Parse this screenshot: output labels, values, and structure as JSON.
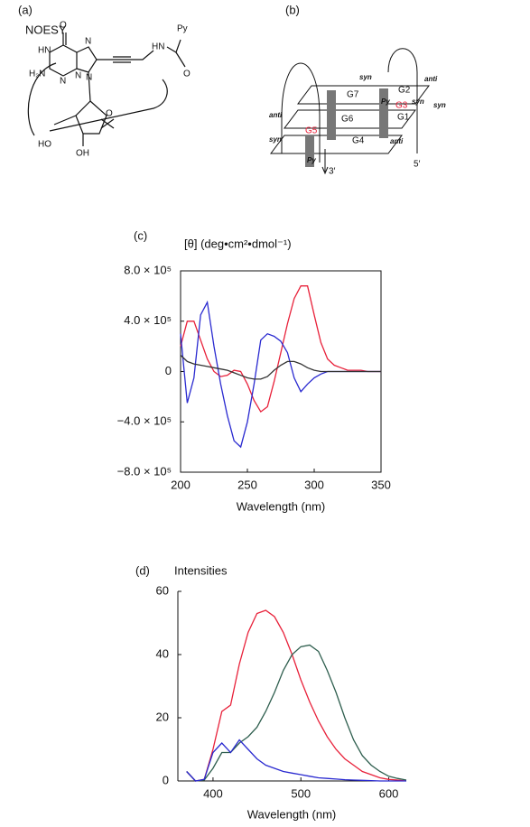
{
  "panels": {
    "a": {
      "tag": "(a)",
      "title": "NOESY",
      "atoms": [
        "Py",
        "HN",
        "O",
        "O",
        "N",
        "HN",
        "H₂N",
        "N",
        "N",
        "N",
        "O",
        "HO",
        "OH"
      ]
    },
    "b": {
      "tag": "(b)",
      "labels": [
        "syn",
        "anti",
        "G7",
        "G2",
        "Py",
        "G3",
        "syn",
        "syn",
        "G6",
        "G1",
        "anti",
        "G5",
        "G4",
        "syn",
        "anti",
        "Py",
        "3′",
        "5′"
      ]
    }
  },
  "chart_data": [
    {
      "type": "line",
      "panel": "(c)",
      "y_label": "[θ] (deg•cm²•dmol⁻¹)",
      "x_label": "Wavelength (nm)",
      "x": [
        200,
        205,
        210,
        215,
        220,
        225,
        230,
        235,
        240,
        245,
        250,
        255,
        260,
        265,
        270,
        275,
        280,
        285,
        290,
        295,
        300,
        305,
        310,
        315,
        320,
        325,
        330,
        335,
        340,
        345,
        350
      ],
      "series": [
        {
          "color": "#e8213a",
          "values": [
            200000,
            400000,
            400000,
            250000,
            100000,
            0,
            -40000,
            -30000,
            10000,
            0,
            -100000,
            -230000,
            -320000,
            -280000,
            -80000,
            150000,
            380000,
            580000,
            680000,
            680000,
            450000,
            230000,
            100000,
            50000,
            30000,
            10000,
            10000,
            10000,
            0,
            0,
            0
          ]
        },
        {
          "color": "#2a2ad0",
          "values": [
            300000,
            -250000,
            -50000,
            450000,
            550000,
            200000,
            -100000,
            -350000,
            -550000,
            -600000,
            -400000,
            -100000,
            250000,
            300000,
            280000,
            240000,
            150000,
            -50000,
            -160000,
            -100000,
            -50000,
            -20000,
            0,
            0,
            0,
            0,
            0,
            0,
            0,
            0,
            0
          ]
        },
        {
          "color": "#333333",
          "values": [
            130000,
            80000,
            60000,
            50000,
            40000,
            30000,
            20000,
            10000,
            -10000,
            -30000,
            -50000,
            -60000,
            -60000,
            -40000,
            10000,
            50000,
            80000,
            80000,
            60000,
            30000,
            10000,
            0,
            0,
            0,
            0,
            0,
            0,
            0,
            0,
            0,
            0
          ]
        }
      ],
      "xlim": [
        200,
        350
      ],
      "xticks": [
        200,
        250,
        300,
        350
      ],
      "ylim": [
        -800000,
        800000
      ],
      "yticks": [
        {
          "value": -800000,
          "label": "−8.0 × 10⁵"
        },
        {
          "value": -400000,
          "label": "−4.0 × 10⁵"
        },
        0,
        {
          "value": 400000,
          "label": "4.0 × 10⁵"
        },
        {
          "value": 800000,
          "label": "8.0 × 10⁵"
        }
      ]
    },
    {
      "type": "line",
      "panel": "(d)",
      "y_label": "Intensities",
      "x_label": "Wavelength (nm)",
      "x": [
        370,
        380,
        390,
        400,
        410,
        420,
        430,
        440,
        450,
        460,
        470,
        480,
        490,
        500,
        510,
        520,
        530,
        540,
        550,
        560,
        570,
        580,
        590,
        600,
        610,
        620
      ],
      "series": [
        {
          "color": "#e8213a",
          "values": [
            3,
            0,
            0.5,
            10,
            22,
            24,
            37,
            47,
            53,
            54,
            52,
            47,
            40,
            32,
            25,
            19,
            14,
            10,
            7,
            5,
            3,
            2,
            1,
            0.5,
            0.3,
            0
          ]
        },
        {
          "color": "#2e5e4e",
          "values": [
            3,
            0,
            0.3,
            4,
            9,
            9,
            12,
            14,
            17,
            22,
            28,
            35,
            40,
            42.5,
            43,
            41,
            35,
            28,
            20,
            13,
            8,
            5,
            3,
            1.5,
            0.8,
            0.3
          ]
        },
        {
          "color": "#2a2ad0",
          "values": [
            3,
            0,
            0.5,
            9,
            12,
            9,
            13,
            10,
            7,
            5,
            4,
            3,
            2.5,
            2,
            1.5,
            1,
            0.8,
            0.6,
            0.4,
            0.3,
            0.2,
            0.1,
            0,
            0,
            0,
            0
          ]
        }
      ],
      "xlim": [
        360,
        620
      ],
      "xticks": [
        400,
        500,
        600
      ],
      "ylim": [
        0,
        60
      ],
      "yticks": [
        0,
        20,
        40,
        60
      ]
    }
  ]
}
